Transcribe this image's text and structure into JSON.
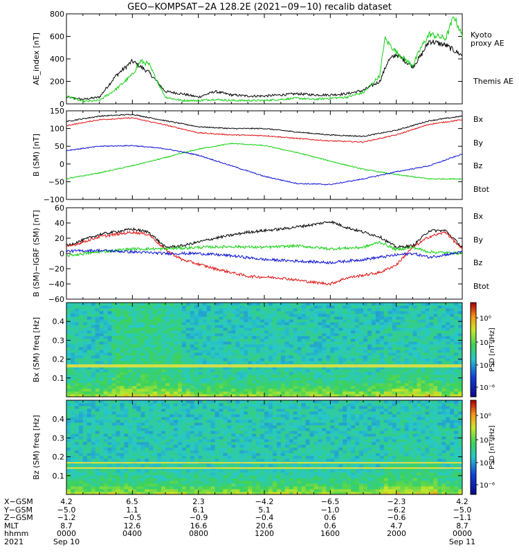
{
  "title": "GEO−KOMPSAT−2A 128.2E (2021−09−10) recalib dataset",
  "colors": {
    "black": "#000000",
    "red": "#e01010",
    "green": "#10d010",
    "blue": "#0a10d0",
    "kyoto": "#22dd22"
  },
  "chart_data": [
    {
      "type": "line",
      "ylabel": "AE_index [nT]",
      "ylim": [
        0,
        800
      ],
      "yticks": [
        "0",
        "200",
        "400",
        "600",
        "800"
      ],
      "legend": [
        {
          "name": "Kyoto proxy AE",
          "color": "green"
        },
        {
          "name": "Themis AE",
          "color": "black"
        }
      ],
      "x_hours": [
        0,
        2,
        4,
        6,
        8,
        10,
        12,
        14,
        16,
        18,
        20,
        21,
        22,
        23,
        24
      ],
      "series": [
        {
          "name": "Themis AE",
          "color": "black",
          "points": [
            [
              0,
              60
            ],
            [
              1,
              40
            ],
            [
              2,
              60
            ],
            [
              3,
              250
            ],
            [
              4,
              380
            ],
            [
              5,
              280
            ],
            [
              6,
              110
            ],
            [
              7,
              90
            ],
            [
              8,
              60
            ],
            [
              9,
              110
            ],
            [
              10,
              80
            ],
            [
              11,
              70
            ],
            [
              12,
              70
            ],
            [
              13,
              80
            ],
            [
              14,
              90
            ],
            [
              15,
              80
            ],
            [
              16,
              80
            ],
            [
              17,
              90
            ],
            [
              18,
              120
            ],
            [
              19,
              200
            ],
            [
              19.5,
              380
            ],
            [
              20,
              440
            ],
            [
              21,
              330
            ],
            [
              21.5,
              430
            ],
            [
              22,
              560
            ],
            [
              23,
              520
            ],
            [
              24,
              430
            ]
          ]
        },
        {
          "name": "Kyoto proxy AE",
          "color": "green",
          "points": [
            [
              0,
              70
            ],
            [
              1,
              20
            ],
            [
              2,
              30
            ],
            [
              3,
              130
            ],
            [
              4,
              260
            ],
            [
              4.5,
              380
            ],
            [
              5,
              350
            ],
            [
              6,
              60
            ],
            [
              7,
              30
            ],
            [
              8,
              30
            ],
            [
              9,
              40
            ],
            [
              10,
              30
            ],
            [
              11,
              30
            ],
            [
              12,
              30
            ],
            [
              13,
              40
            ],
            [
              14,
              50
            ],
            [
              15,
              40
            ],
            [
              16,
              50
            ],
            [
              17,
              60
            ],
            [
              18,
              100
            ],
            [
              19,
              250
            ],
            [
              19.3,
              580
            ],
            [
              20,
              460
            ],
            [
              21,
              340
            ],
            [
              21.5,
              500
            ],
            [
              22,
              620
            ],
            [
              23,
              580
            ],
            [
              23.5,
              780
            ],
            [
              24,
              600
            ]
          ]
        }
      ]
    },
    {
      "type": "line",
      "ylabel": "B (SM) [nT]",
      "ylim": [
        -100,
        150
      ],
      "yticks": [
        "−100",
        "−50",
        "0",
        "50",
        "100",
        "150"
      ],
      "legend": [
        {
          "name": "Bx",
          "color": "blue"
        },
        {
          "name": "By",
          "color": "green"
        },
        {
          "name": "Bz",
          "color": "red"
        },
        {
          "name": "Btot",
          "color": "black"
        }
      ],
      "series": [
        {
          "name": "Btot",
          "color": "black",
          "points": [
            [
              0,
              120
            ],
            [
              2,
              135
            ],
            [
              4,
              140
            ],
            [
              6,
              122
            ],
            [
              8,
              105
            ],
            [
              10,
              100
            ],
            [
              12,
              100
            ],
            [
              14,
              90
            ],
            [
              16,
              82
            ],
            [
              18,
              78
            ],
            [
              20,
              95
            ],
            [
              22,
              122
            ],
            [
              24,
              135
            ]
          ]
        },
        {
          "name": "Bz",
          "color": "red",
          "points": [
            [
              0,
              108
            ],
            [
              2,
              125
            ],
            [
              4,
              130
            ],
            [
              6,
              110
            ],
            [
              8,
              88
            ],
            [
              10,
              82
            ],
            [
              12,
              80
            ],
            [
              14,
              72
            ],
            [
              16,
              65
            ],
            [
              18,
              62
            ],
            [
              20,
              82
            ],
            [
              22,
              112
            ],
            [
              24,
              125
            ]
          ]
        },
        {
          "name": "By",
          "color": "green",
          "points": [
            [
              0,
              -42
            ],
            [
              2,
              -25
            ],
            [
              4,
              -5
            ],
            [
              6,
              18
            ],
            [
              8,
              42
            ],
            [
              10,
              58
            ],
            [
              12,
              52
            ],
            [
              14,
              32
            ],
            [
              16,
              8
            ],
            [
              18,
              -15
            ],
            [
              20,
              -30
            ],
            [
              22,
              -42
            ],
            [
              24,
              -42
            ]
          ]
        },
        {
          "name": "Bx",
          "color": "blue",
          "points": [
            [
              0,
              38
            ],
            [
              2,
              50
            ],
            [
              4,
              52
            ],
            [
              6,
              43
            ],
            [
              8,
              25
            ],
            [
              10,
              -5
            ],
            [
              12,
              -35
            ],
            [
              14,
              -55
            ],
            [
              16,
              -58
            ],
            [
              18,
              -42
            ],
            [
              20,
              -22
            ],
            [
              22,
              -5
            ],
            [
              24,
              28
            ]
          ]
        }
      ]
    },
    {
      "type": "line",
      "ylabel": "B (SM)−IGRF (SM) [nT]",
      "ylim": [
        -60,
        60
      ],
      "yticks": [
        "−60",
        "−40",
        "−20",
        "0",
        "20",
        "40",
        "60"
      ],
      "legend": [
        {
          "name": "Bx",
          "color": "blue"
        },
        {
          "name": "By",
          "color": "green"
        },
        {
          "name": "Bz",
          "color": "red"
        },
        {
          "name": "Btot",
          "color": "black"
        }
      ],
      "series": [
        {
          "name": "Btot",
          "color": "black",
          "points": [
            [
              0,
              10
            ],
            [
              2,
              25
            ],
            [
              4,
              32
            ],
            [
              5,
              28
            ],
            [
              6,
              8
            ],
            [
              7,
              10
            ],
            [
              9,
              20
            ],
            [
              11,
              28
            ],
            [
              13,
              32
            ],
            [
              15,
              38
            ],
            [
              16,
              42
            ],
            [
              17,
              34
            ],
            [
              19,
              22
            ],
            [
              20,
              8
            ],
            [
              21,
              10
            ],
            [
              22,
              30
            ],
            [
              23,
              30
            ],
            [
              24,
              8
            ]
          ]
        },
        {
          "name": "Bz",
          "color": "red",
          "points": [
            [
              0,
              8
            ],
            [
              2,
              22
            ],
            [
              4,
              28
            ],
            [
              5,
              25
            ],
            [
              6,
              5
            ],
            [
              7,
              -8
            ],
            [
              9,
              -20
            ],
            [
              11,
              -30
            ],
            [
              13,
              -32
            ],
            [
              15,
              -38
            ],
            [
              16,
              -40
            ],
            [
              17,
              -32
            ],
            [
              19,
              -25
            ],
            [
              20,
              -15
            ],
            [
              21,
              8
            ],
            [
              22,
              22
            ],
            [
              23,
              28
            ],
            [
              24,
              5
            ]
          ]
        },
        {
          "name": "By",
          "color": "green",
          "points": [
            [
              0,
              -3
            ],
            [
              2,
              2
            ],
            [
              4,
              6
            ],
            [
              6,
              6
            ],
            [
              8,
              8
            ],
            [
              10,
              9
            ],
            [
              12,
              8
            ],
            [
              14,
              10
            ],
            [
              16,
              6
            ],
            [
              18,
              8
            ],
            [
              19,
              15
            ],
            [
              20,
              5
            ],
            [
              21,
              8
            ],
            [
              22,
              2
            ],
            [
              24,
              0
            ]
          ]
        },
        {
          "name": "Bx",
          "color": "blue",
          "points": [
            [
              0,
              3
            ],
            [
              2,
              4
            ],
            [
              4,
              2
            ],
            [
              6,
              0
            ],
            [
              8,
              0
            ],
            [
              10,
              -3
            ],
            [
              12,
              -8
            ],
            [
              14,
              -10
            ],
            [
              16,
              -12
            ],
            [
              18,
              -8
            ],
            [
              20,
              -2
            ],
            [
              21,
              0
            ],
            [
              22,
              -5
            ],
            [
              24,
              2
            ]
          ]
        }
      ]
    },
    {
      "type": "heatmap",
      "ylabel": "Bx (SM) freq [Hz]",
      "ylim": [
        0,
        0.5
      ],
      "yticks": [
        "0.1",
        "0.2",
        "0.3",
        "0.4"
      ],
      "colorbar_label": "PSD [nT²/Hz]",
      "colorbar_ticks": [
        "10⁰",
        "10⁻²",
        "10⁻⁴",
        "10⁻⁶"
      ],
      "line_freqs": [
        0.16,
        0.168
      ]
    },
    {
      "type": "heatmap",
      "ylabel": "Bz (SM) freq [Hz]",
      "ylim": [
        0,
        0.5
      ],
      "yticks": [
        "0.1",
        "0.2",
        "0.3",
        "0.4"
      ],
      "colorbar_label": "PSD [nT²/Hz]",
      "colorbar_ticks": [
        "10⁰",
        "10⁻²",
        "10⁻⁴",
        "10⁻⁶"
      ],
      "line_freqs": [
        0.14,
        0.168
      ]
    }
  ],
  "footer": {
    "labels": [
      "X−GSM",
      "Y−GSM",
      "Z−GSM",
      "MLT",
      "hhmm",
      "2021"
    ],
    "columns": [
      [
        "4.2",
        "−5.0",
        "−1.2",
        "8.7",
        "0000",
        "Sep 10"
      ],
      [
        "6.5",
        "1.1",
        "−0.5",
        "12.6",
        "0400",
        ""
      ],
      [
        "2.3",
        "6.1",
        "−0.9",
        "16.6",
        "0800",
        ""
      ],
      [
        "−4.2",
        "5.1",
        "−0.4",
        "20.6",
        "1200",
        ""
      ],
      [
        "−6.5",
        "−1.0",
        "0.6",
        "0.6",
        "1600",
        ""
      ],
      [
        "−2.3",
        "−6.2",
        "−0.6",
        "4.7",
        "2000",
        ""
      ],
      [
        "4.2",
        "−5.0",
        "−1.1",
        "8.7",
        "0000",
        "Sep 11"
      ]
    ]
  }
}
